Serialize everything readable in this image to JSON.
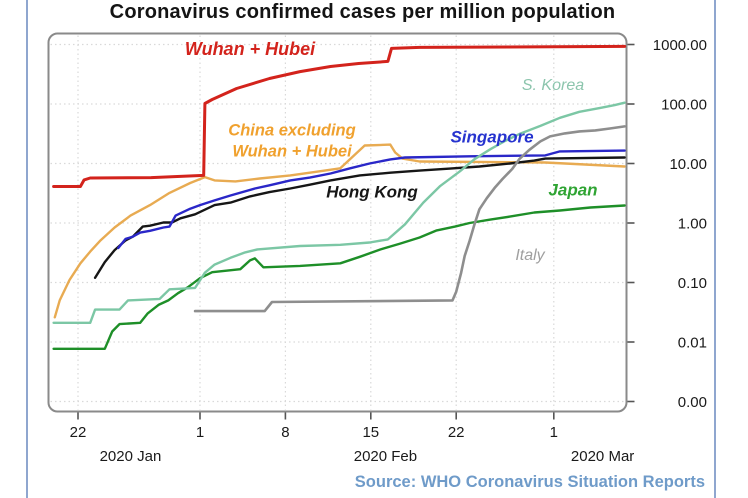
{
  "page": {
    "source_note": "Source: WHO Coronavirus Situation Reports",
    "source_color": "#6f9bc9",
    "side_border_color": "#8fa6cf",
    "background_color": "#ffffff"
  },
  "chart_data": {
    "type": "line",
    "title": "Coronavirus confirmed cases per million population",
    "xlabel": "",
    "ylabel": "",
    "x_axis": {
      "unit": "days since 2020-01-20",
      "range_days": [
        0,
        47
      ],
      "ticks": [
        {
          "label": "22",
          "day": 2
        },
        {
          "label": "1",
          "day": 12
        },
        {
          "label": "8",
          "day": 19
        },
        {
          "label": "15",
          "day": 26
        },
        {
          "label": "22",
          "day": 33
        },
        {
          "label": "1",
          "day": 41
        }
      ],
      "month_labels": [
        {
          "label": "2020 Jan",
          "day": 6.3
        },
        {
          "label": "2020 Feb",
          "day": 27.2
        },
        {
          "label": "2020 Mar",
          "day": 45
        }
      ]
    },
    "y_axis": {
      "scale": "log",
      "side": "right",
      "ylim": [
        0.001,
        1200
      ],
      "tick_labels": [
        "1000.00",
        "100.00",
        "10.00",
        "1.00",
        "0.10",
        "0.01",
        "0.00"
      ],
      "tick_values": [
        1000,
        100,
        10,
        1,
        0.1,
        0.01,
        0.001
      ]
    },
    "style": {
      "grid_color": "#d9d9d9",
      "plot_border_color": "#8a8a8a",
      "tick_color": "#555555",
      "tick_label_color": "#1a1a1a",
      "grid": true
    },
    "series": [
      {
        "id": "china-ex-hubei",
        "name": "China excluding Wuhan + Hubei",
        "color": "#e8ab52",
        "width": 2.4,
        "label": {
          "text": "China excluding\nWuhan + Hubei",
          "color": "#f0a12e",
          "x": 292,
          "y": 141,
          "size": 16.5,
          "bold": true
        },
        "points": [
          [
            0.1,
            0.026
          ],
          [
            0.5,
            0.05
          ],
          [
            1.3,
            0.11
          ],
          [
            2.2,
            0.21
          ],
          [
            3,
            0.33
          ],
          [
            3.8,
            0.5
          ],
          [
            5,
            0.84
          ],
          [
            6.3,
            1.33
          ],
          [
            7.9,
            2.0
          ],
          [
            9.5,
            3.2
          ],
          [
            11.2,
            4.7
          ],
          [
            12.4,
            5.9
          ],
          [
            13.2,
            5.2
          ],
          [
            14.9,
            5.0
          ],
          [
            16.9,
            5.6
          ],
          [
            19.4,
            6.3
          ],
          [
            21.8,
            7.4
          ],
          [
            23.5,
            8.3
          ],
          [
            25.5,
            20.1
          ],
          [
            27.6,
            20.8
          ],
          [
            28,
            15.3
          ],
          [
            28.6,
            12.1
          ],
          [
            30,
            10.8
          ],
          [
            40.3,
            10.4
          ],
          [
            46.8,
            8.9
          ]
        ]
      },
      {
        "id": "hong-kong",
        "name": "Hong Kong",
        "color": "#161616",
        "width": 2.4,
        "label": {
          "text": "Hong Kong",
          "color": "#161616",
          "x": 372,
          "y": 192,
          "size": 17,
          "bold": true
        },
        "points": [
          [
            3.4,
            0.12
          ],
          [
            4.2,
            0.22
          ],
          [
            5,
            0.35
          ],
          [
            5.9,
            0.51
          ],
          [
            6.5,
            0.59
          ],
          [
            7.3,
            0.87
          ],
          [
            7.9,
            0.9
          ],
          [
            9,
            1.02
          ],
          [
            9.7,
            1.02
          ],
          [
            10.4,
            1.2
          ],
          [
            11.6,
            1.4
          ],
          [
            13.2,
            2.0
          ],
          [
            14.5,
            2.2
          ],
          [
            16.1,
            2.8
          ],
          [
            17.7,
            3.3
          ],
          [
            19.4,
            3.8
          ],
          [
            21,
            4.4
          ],
          [
            22.7,
            5.2
          ],
          [
            25.1,
            6.3
          ],
          [
            27.6,
            7.0
          ],
          [
            30,
            7.6
          ],
          [
            32.5,
            8.2
          ],
          [
            34.9,
            8.9
          ],
          [
            37.4,
            10.0
          ],
          [
            39.4,
            11.2
          ],
          [
            40.3,
            12.1
          ],
          [
            46.8,
            12.6
          ]
        ]
      },
      {
        "id": "singapore",
        "name": "Singapore",
        "color": "#2a27c8",
        "width": 2.4,
        "label": {
          "text": "Singapore",
          "color": "#2633cf",
          "x": 492,
          "y": 137,
          "size": 17,
          "bold": true
        },
        "points": [
          [
            5.3,
            0.38
          ],
          [
            5.9,
            0.54
          ],
          [
            6.5,
            0.59
          ],
          [
            7.1,
            0.69
          ],
          [
            7.9,
            0.74
          ],
          [
            9,
            0.84
          ],
          [
            9.5,
            0.87
          ],
          [
            10,
            1.33
          ],
          [
            11.2,
            1.74
          ],
          [
            12,
            2.0
          ],
          [
            13.2,
            2.4
          ],
          [
            14.5,
            2.9
          ],
          [
            16.5,
            3.8
          ],
          [
            17.7,
            4.3
          ],
          [
            19.4,
            5.2
          ],
          [
            21,
            5.8
          ],
          [
            22.7,
            6.8
          ],
          [
            24.3,
            8.3
          ],
          [
            25.9,
            10.0
          ],
          [
            27.6,
            11.7
          ],
          [
            28.8,
            12.6
          ],
          [
            34.1,
            13.2
          ],
          [
            40.3,
            13.7
          ],
          [
            41.5,
            16.0
          ],
          [
            46.8,
            16.5
          ]
        ]
      },
      {
        "id": "japan",
        "name": "Japan",
        "color": "#1e8f28",
        "width": 2.4,
        "label": {
          "text": "Japan",
          "color": "#2fa433",
          "x": 573,
          "y": 190,
          "size": 17,
          "bold": true
        },
        "points": [
          [
            0,
            0.0077
          ],
          [
            4.2,
            0.0077
          ],
          [
            4.8,
            0.015
          ],
          [
            5.4,
            0.02
          ],
          [
            7.1,
            0.021
          ],
          [
            7.7,
            0.03
          ],
          [
            8.6,
            0.042
          ],
          [
            9.4,
            0.05
          ],
          [
            10.2,
            0.066
          ],
          [
            11,
            0.083
          ],
          [
            12,
            0.118
          ],
          [
            13,
            0.149
          ],
          [
            15.3,
            0.167
          ],
          [
            16.1,
            0.235
          ],
          [
            16.5,
            0.254
          ],
          [
            17.2,
            0.18
          ],
          [
            20.2,
            0.19
          ],
          [
            23.5,
            0.21
          ],
          [
            25.1,
            0.27
          ],
          [
            26.8,
            0.36
          ],
          [
            28.4,
            0.45
          ],
          [
            30,
            0.57
          ],
          [
            31.4,
            0.75
          ],
          [
            32.9,
            0.87
          ],
          [
            34.1,
            1.0
          ],
          [
            35.8,
            1.14
          ],
          [
            37.4,
            1.28
          ],
          [
            39.4,
            1.5
          ],
          [
            41.5,
            1.62
          ],
          [
            44,
            1.82
          ],
          [
            46.8,
            1.97
          ]
        ]
      },
      {
        "id": "s-korea",
        "name": "S. Korea",
        "color": "#7cc7a5",
        "width": 2.4,
        "label": {
          "text": "S. Korea",
          "color": "#8cc5ad",
          "x": 553,
          "y": 86,
          "size": 16,
          "bold": false
        },
        "points": [
          [
            0,
            0.021
          ],
          [
            3,
            0.021
          ],
          [
            3.4,
            0.035
          ],
          [
            5.4,
            0.035
          ],
          [
            6.1,
            0.05
          ],
          [
            8.7,
            0.053
          ],
          [
            9.5,
            0.077
          ],
          [
            11.6,
            0.081
          ],
          [
            12.4,
            0.146
          ],
          [
            13.2,
            0.2
          ],
          [
            14.5,
            0.26
          ],
          [
            15.7,
            0.32
          ],
          [
            16.7,
            0.36
          ],
          [
            20.2,
            0.41
          ],
          [
            23.5,
            0.43
          ],
          [
            25.9,
            0.47
          ],
          [
            27.4,
            0.53
          ],
          [
            28.8,
            0.95
          ],
          [
            30.3,
            2.2
          ],
          [
            31.7,
            4.2
          ],
          [
            33.3,
            7.4
          ],
          [
            34.5,
            11.8
          ],
          [
            35.8,
            17.4
          ],
          [
            37,
            23.9
          ],
          [
            38.2,
            31.4
          ],
          [
            39.9,
            42.9
          ],
          [
            41.5,
            58.6
          ],
          [
            43.1,
            74
          ],
          [
            44.8,
            86
          ],
          [
            46,
            96
          ],
          [
            46.8,
            105
          ]
        ]
      },
      {
        "id": "italy",
        "name": "Italy",
        "color": "#8e8e8e",
        "width": 2.6,
        "label": {
          "text": "Italy",
          "color": "#9f9f9f",
          "x": 530,
          "y": 256,
          "size": 16,
          "bold": false
        },
        "points": [
          [
            11.6,
            0.033
          ],
          [
            17.3,
            0.033
          ],
          [
            17.9,
            0.047
          ],
          [
            32.7,
            0.05
          ],
          [
            33,
            0.07
          ],
          [
            33.4,
            0.145
          ],
          [
            33.7,
            0.28
          ],
          [
            34.1,
            0.5
          ],
          [
            34.5,
            0.95
          ],
          [
            34.9,
            1.7
          ],
          [
            35.5,
            2.6
          ],
          [
            36.2,
            4.0
          ],
          [
            36.8,
            5.5
          ],
          [
            37.6,
            8.1
          ],
          [
            38.2,
            12
          ],
          [
            39,
            17
          ],
          [
            39.9,
            23.5
          ],
          [
            40.7,
            28.5
          ],
          [
            41.9,
            32
          ],
          [
            43.1,
            34.6
          ],
          [
            44.4,
            36
          ],
          [
            45.6,
            38.8
          ],
          [
            46.8,
            42
          ]
        ]
      },
      {
        "id": "wuhan-hubei",
        "name": "Wuhan + Hubei",
        "color": "#d3231c",
        "width": 3,
        "label": {
          "text": "Wuhan + Hubei",
          "color": "#d3231c",
          "x": 250,
          "y": 49,
          "size": 18,
          "bold": true
        },
        "points": [
          [
            0,
            4.1
          ],
          [
            2.2,
            4.1
          ],
          [
            2.5,
            5.3
          ],
          [
            3,
            5.7
          ],
          [
            8,
            5.8
          ],
          [
            12.3,
            6.3
          ],
          [
            12.4,
            102
          ],
          [
            13,
            119
          ],
          [
            15,
            182
          ],
          [
            17.7,
            268
          ],
          [
            20.2,
            350
          ],
          [
            22.7,
            427
          ],
          [
            25,
            479
          ],
          [
            27.4,
            520
          ],
          [
            27.7,
            860
          ],
          [
            30,
            894
          ],
          [
            46.8,
            929
          ]
        ]
      }
    ]
  }
}
